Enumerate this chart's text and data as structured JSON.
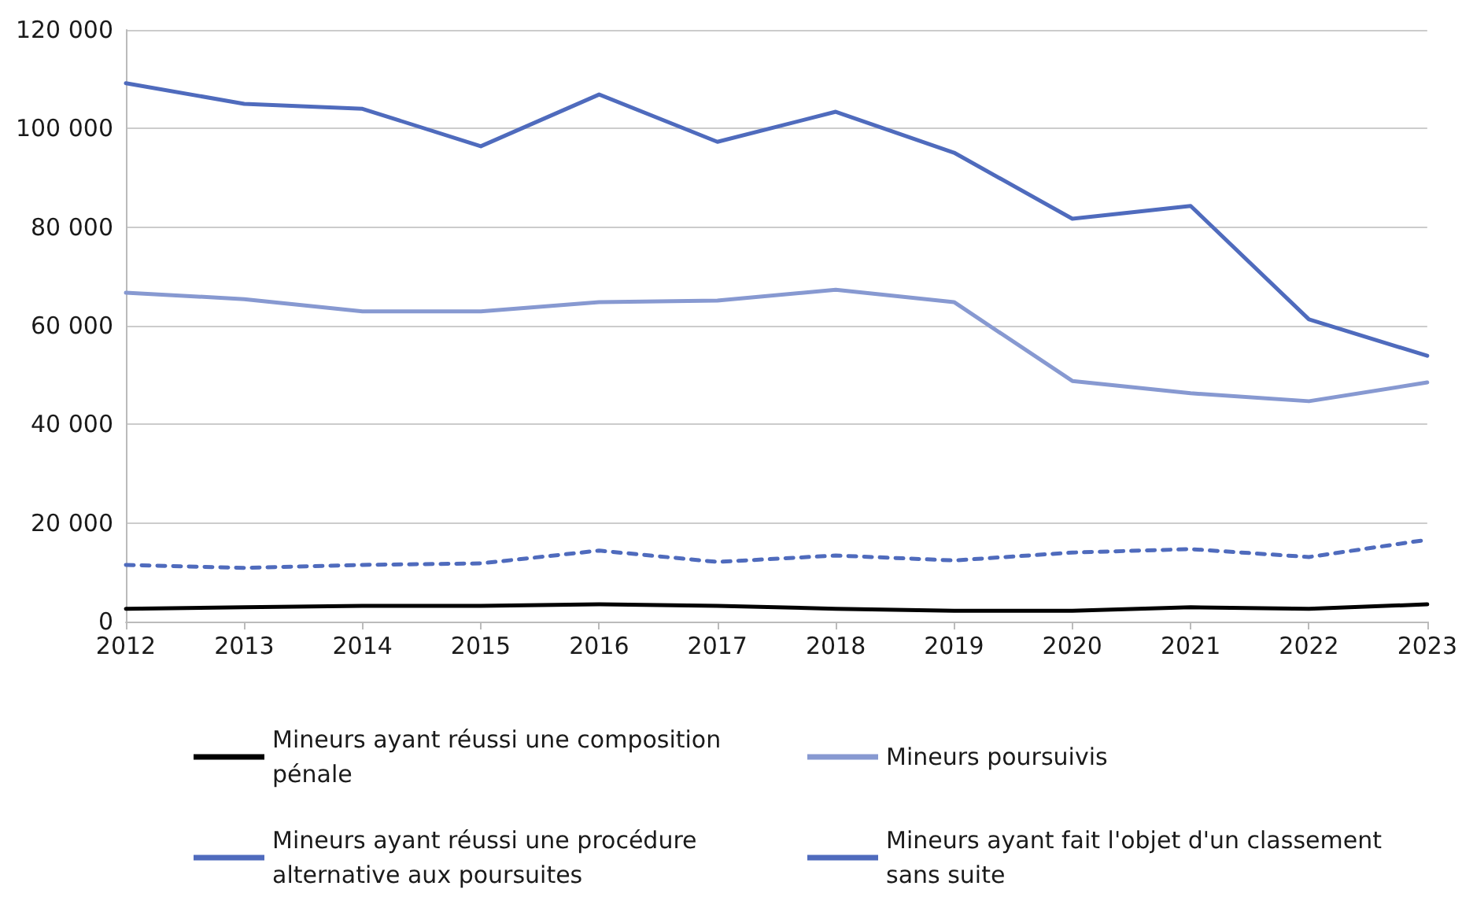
{
  "chart_data": {
    "type": "line",
    "categories": [
      "2012",
      "2013",
      "2014",
      "2015",
      "2016",
      "2017",
      "2018",
      "2019",
      "2020",
      "2021",
      "2022",
      "2023"
    ],
    "series": [
      {
        "name": "Mineurs ayant réussi une composition pénale",
        "color": "#000000",
        "line_style": "solid",
        "values": [
          2600,
          2900,
          3200,
          3200,
          3500,
          3200,
          2600,
          2200,
          2200,
          2900,
          2600,
          3500
        ]
      },
      {
        "name": "Mineurs poursuivis",
        "color": "#8799d1",
        "line_style": "solid",
        "values": [
          66700,
          65400,
          62900,
          62900,
          64800,
          65100,
          67300,
          64800,
          48800,
          46300,
          44700,
          48500
        ]
      },
      {
        "name": "Mineurs ayant réussi une procédure alternative aux poursuites",
        "color": "#4f6bbd",
        "line_style": "solid",
        "values": [
          109200,
          105000,
          104000,
          96400,
          106900,
          97300,
          103400,
          95100,
          81700,
          84300,
          61300,
          53900
        ]
      },
      {
        "name": "Mineurs ayant fait l'objet d'un classement sans suite",
        "color": "#4f6bbd",
        "line_style": "dashed",
        "values": [
          11500,
          10900,
          11500,
          11800,
          14400,
          12100,
          13400,
          12400,
          14000,
          14700,
          13100,
          16600
        ]
      }
    ],
    "ylim": [
      0,
      120000
    ],
    "yticks": [
      {
        "value": 0,
        "label": "0"
      },
      {
        "value": 20000,
        "label": "20 000"
      },
      {
        "value": 40000,
        "label": "40 000"
      },
      {
        "value": 60000,
        "label": "60 000"
      },
      {
        "value": 80000,
        "label": "80 000"
      },
      {
        "value": 100000,
        "label": "100 000"
      },
      {
        "value": 120000,
        "label": "120 000"
      }
    ],
    "grid": "y",
    "legend": "bottom",
    "marker": "none"
  }
}
